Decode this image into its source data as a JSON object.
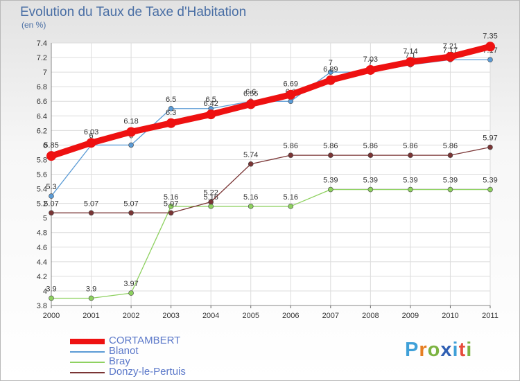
{
  "header": {
    "title": "Evolution du Taux de Taxe d'Habitation",
    "unit": "(en %)"
  },
  "logo": {
    "text": "Proxiti",
    "colors": [
      "#3fa0d8",
      "#e67e22",
      "#7cb342",
      "#2f5fb3",
      "#3fa0d8",
      "#e74c3c",
      "#7cb342"
    ]
  },
  "chart_data": {
    "type": "line",
    "x": [
      "2000",
      "2001",
      "2002",
      "2003",
      "2004",
      "2005",
      "2006",
      "2007",
      "2008",
      "2009",
      "2010",
      "2011"
    ],
    "ylim": [
      3.8,
      7.4
    ],
    "yticks": [
      "3.8",
      "4",
      "4.2",
      "4.4",
      "4.6",
      "4.8",
      "5",
      "5.2",
      "5.4",
      "5.6",
      "5.8",
      "6",
      "6.2",
      "6.4",
      "6.6",
      "6.8",
      "7",
      "7.2",
      "7.4"
    ],
    "grid": true,
    "legend": "bottom-left",
    "series": [
      {
        "name": "CORTAMBERT",
        "color": "#ee1111",
        "emphasis": true,
        "values": [
          5.85,
          6.03,
          6.18,
          6.3,
          6.42,
          6.56,
          6.69,
          6.89,
          7.03,
          7.14,
          7.21,
          7.35
        ],
        "labels": [
          "5.85",
          "6.03",
          "6.18",
          "6.3",
          "6.42",
          "6.56",
          "6.69",
          "6.89",
          "7.03",
          "7.14",
          "7.21",
          "7.35"
        ]
      },
      {
        "name": "Blanot",
        "color": "#5b9bd5",
        "values": [
          5.3,
          6,
          6,
          6.5,
          6.5,
          6.6,
          6.6,
          7,
          7,
          7.1,
          7.17,
          7.17
        ],
        "labels": [
          "5.3",
          "6",
          "6",
          "6.5",
          "6.5",
          "6.6",
          "6.6",
          "7",
          "7",
          "7.1",
          "7.17",
          "7.17"
        ]
      },
      {
        "name": "Bray",
        "color": "#8ed160",
        "values": [
          3.9,
          3.9,
          3.97,
          5.16,
          5.16,
          5.16,
          5.16,
          5.39,
          5.39,
          5.39,
          5.39,
          5.39
        ],
        "labels": [
          "3.9",
          "3.9",
          "3.97",
          "5.16",
          "5.16",
          "5.16",
          "5.16",
          "5.39",
          "5.39",
          "5.39",
          "5.39",
          "5.39"
        ]
      },
      {
        "name": "Donzy-le-Pertuis",
        "color": "#7a3535",
        "values": [
          5.07,
          5.07,
          5.07,
          5.07,
          5.22,
          5.74,
          5.86,
          5.86,
          5.86,
          5.86,
          5.86,
          5.97
        ],
        "labels": [
          "5.07",
          "5.07",
          "5.07",
          "5.07",
          "5.22",
          "5.74",
          "5.86",
          "5.86",
          "5.86",
          "5.86",
          "5.86",
          "5.97"
        ]
      }
    ]
  }
}
